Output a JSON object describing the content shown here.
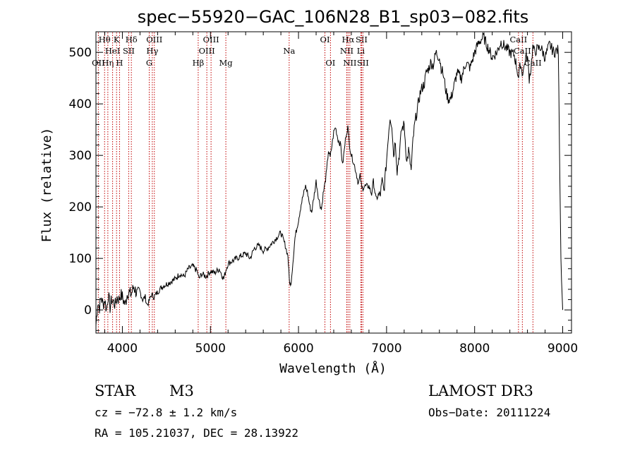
{
  "chart_data": {
    "type": "line",
    "title": "spec−55920−GAC_106N28_B1_sp03−082.fits",
    "xlabel": "Wavelength (Å)",
    "ylabel": "Flux (relative)",
    "xlim": [
      3700,
      9100
    ],
    "ylim": [
      -45,
      540
    ],
    "xticks": [
      4000,
      5000,
      6000,
      7000,
      8000,
      9000
    ],
    "yticks": [
      0,
      100,
      200,
      300,
      400,
      500
    ],
    "series": [
      {
        "name": "spectrum",
        "x": [
          3700,
          3720,
          3740,
          3760,
          3780,
          3800,
          3820,
          3840,
          3860,
          3880,
          3900,
          3920,
          3940,
          3960,
          3980,
          4000,
          4030,
          4060,
          4100,
          4130,
          4170,
          4200,
          4230,
          4260,
          4280,
          4300,
          4330,
          4360,
          4400,
          4450,
          4500,
          4550,
          4600,
          4650,
          4700,
          4750,
          4800,
          4850,
          4870,
          4900,
          4950,
          5000,
          5050,
          5100,
          5150,
          5180,
          5200,
          5250,
          5300,
          5350,
          5400,
          5450,
          5500,
          5550,
          5600,
          5650,
          5700,
          5750,
          5800,
          5850,
          5880,
          5895,
          5910,
          5930,
          5960,
          6000,
          6030,
          6050,
          6080,
          6100,
          6130,
          6150,
          6180,
          6200,
          6230,
          6260,
          6280,
          6300,
          6320,
          6340,
          6360,
          6380,
          6400,
          6420,
          6450,
          6480,
          6500,
          6520,
          6540,
          6560,
          6580,
          6600,
          6620,
          6650,
          6680,
          6700,
          6720,
          6750,
          6800,
          6830,
          6850,
          6880,
          6900,
          6930,
          6950,
          6970,
          7000,
          7020,
          7040,
          7060,
          7080,
          7100,
          7120,
          7150,
          7170,
          7200,
          7230,
          7250,
          7280,
          7300,
          7320,
          7350,
          7380,
          7400,
          7430,
          7450,
          7480,
          7500,
          7530,
          7560,
          7600,
          7620,
          7640,
          7660,
          7680,
          7700,
          7730,
          7760,
          7800,
          7850,
          7900,
          7950,
          8000,
          8050,
          8100,
          8150,
          8200,
          8250,
          8300,
          8350,
          8400,
          8450,
          8480,
          8500,
          8520,
          8540,
          8560,
          8580,
          8600,
          8620,
          8640,
          8660,
          8680,
          8700,
          8750,
          8800,
          8850,
          8900,
          8950,
          8980,
          9000
        ],
        "y": [
          -30,
          15,
          5,
          25,
          10,
          20,
          0,
          30,
          5,
          20,
          15,
          10,
          25,
          20,
          30,
          25,
          10,
          35,
          30,
          45,
          30,
          35,
          20,
          25,
          10,
          15,
          30,
          25,
          35,
          45,
          50,
          55,
          60,
          70,
          65,
          80,
          85,
          75,
          60,
          70,
          65,
          75,
          72,
          80,
          60,
          80,
          90,
          95,
          100,
          105,
          110,
          100,
          120,
          125,
          115,
          120,
          130,
          140,
          150,
          125,
          105,
          60,
          45,
          80,
          140,
          175,
          205,
          220,
          240,
          230,
          200,
          190,
          225,
          250,
          215,
          195,
          225,
          245,
          270,
          310,
          295,
          320,
          345,
          355,
          330,
          320,
          280,
          310,
          340,
          355,
          320,
          300,
          290,
          270,
          245,
          260,
          235,
          240,
          240,
          225,
          250,
          215,
          220,
          225,
          250,
          230,
          290,
          340,
          375,
          360,
          300,
          330,
          270,
          310,
          350,
          360,
          285,
          310,
          270,
          330,
          360,
          390,
          420,
          430,
          440,
          460,
          470,
          480,
          475,
          500,
          490,
          470,
          460,
          440,
          420,
          410,
          410,
          430,
          460,
          450,
          480,
          470,
          500,
          520,
          530,
          510,
          490,
          500,
          520,
          510,
          500,
          495,
          470,
          450,
          480,
          460,
          470,
          490,
          490,
          450,
          470,
          510,
          500,
          505,
          510,
          490,
          515,
          500,
          505,
          100,
          0
        ]
      }
    ],
    "emission_lines": [
      {
        "name": "Hθ",
        "x": 3798,
        "row": 0
      },
      {
        "name": "OII",
        "x": 3727,
        "row": 2
      },
      {
        "name": "Hη",
        "x": 3835,
        "row": 2
      },
      {
        "name": "HeI",
        "x": 3889,
        "row": 1
      },
      {
        "name": "K",
        "x": 3934,
        "row": 0
      },
      {
        "name": "H",
        "x": 3968,
        "row": 2
      },
      {
        "name": "SII",
        "x": 4072,
        "row": 1
      },
      {
        "name": "Hδ",
        "x": 4102,
        "row": 0
      },
      {
        "name": "G",
        "x": 4305,
        "row": 2
      },
      {
        "name": "Hγ",
        "x": 4340,
        "row": 1
      },
      {
        "name": "OIII",
        "x": 4363,
        "row": 0
      },
      {
        "name": "Hβ",
        "x": 4861,
        "row": 2
      },
      {
        "name": "OIII",
        "x": 4959,
        "row": 1
      },
      {
        "name": "OIII",
        "x": 5007,
        "row": 0
      },
      {
        "name": "Mg",
        "x": 5175,
        "row": 2
      },
      {
        "name": "Na",
        "x": 5894,
        "row": 1
      },
      {
        "name": "OI",
        "x": 6300,
        "row": 0
      },
      {
        "name": "OI",
        "x": 6363,
        "row": 2
      },
      {
        "name": "NII",
        "x": 6548,
        "row": 1
      },
      {
        "name": "Hα",
        "x": 6563,
        "row": 0
      },
      {
        "name": "NII",
        "x": 6583,
        "row": 2
      },
      {
        "name": "SII",
        "x": 6716,
        "row": 0
      },
      {
        "name": "Li",
        "x": 6708,
        "row": 1
      },
      {
        "name": "SII",
        "x": 6731,
        "row": 2
      },
      {
        "name": "CaII",
        "x": 8498,
        "row": 0
      },
      {
        "name": "CaII",
        "x": 8542,
        "row": 1
      },
      {
        "name": "CaII",
        "x": 8662,
        "row": 2
      }
    ]
  },
  "info": {
    "class": "STAR",
    "subclass": "M3",
    "survey": "LAMOST DR3",
    "cz": "cz = −72.8 ± 1.2 km/s",
    "obs_date": "Obs−Date: 20111224",
    "radec": "RA = 105.21037, DEC =  28.13922"
  },
  "colors": {
    "spectrum": "#000000",
    "line_marker": "#c00000",
    "axes": "#000000"
  }
}
